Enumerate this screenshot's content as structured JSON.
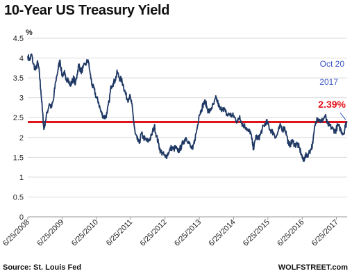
{
  "colors": {
    "series_line": "#1f3864",
    "reference_line": "#e0151b",
    "date_annotation": "#3a56c5",
    "value_annotation": "#e0151b",
    "grid": "#d9d9d9"
  },
  "chart_data": {
    "type": "line",
    "title": "10-Year US Treasury Yield",
    "ylabel": "%",
    "ylim": [
      0,
      4.5
    ],
    "yticks": [
      "0",
      "0.5",
      "1",
      "1.5",
      "2",
      "2.5",
      "3",
      "3.5",
      "4",
      "4.5"
    ],
    "xlim": [
      2008.49,
      2017.8
    ],
    "xticks": [
      {
        "label": "6/25/2008",
        "t": 2008.49
      },
      {
        "label": "6/25/2009",
        "t": 2009.49
      },
      {
        "label": "6/25/2010",
        "t": 2010.49
      },
      {
        "label": "6/25/2011",
        "t": 2011.49
      },
      {
        "label": "6/25/2012",
        "t": 2012.49
      },
      {
        "label": "6/25/2013",
        "t": 2013.49
      },
      {
        "label": "6/25/2014",
        "t": 2014.49
      },
      {
        "label": "6/25/2015",
        "t": 2015.49
      },
      {
        "label": "6/25/2016",
        "t": 2016.49
      },
      {
        "label": "6/25/2017",
        "t": 2017.49
      }
    ],
    "grid": "horizontal",
    "series": [
      {
        "values": [
          [
            2008.49,
            4.05
          ],
          [
            2008.55,
            3.95
          ],
          [
            2008.6,
            4.1
          ],
          [
            2008.65,
            3.85
          ],
          [
            2008.72,
            3.7
          ],
          [
            2008.78,
            3.9
          ],
          [
            2008.83,
            3.6
          ],
          [
            2008.87,
            3.2
          ],
          [
            2008.92,
            2.65
          ],
          [
            2008.96,
            2.2
          ],
          [
            2009.0,
            2.4
          ],
          [
            2009.06,
            2.65
          ],
          [
            2009.12,
            2.85
          ],
          [
            2009.18,
            2.75
          ],
          [
            2009.24,
            2.95
          ],
          [
            2009.3,
            3.4
          ],
          [
            2009.38,
            3.75
          ],
          [
            2009.43,
            3.95
          ],
          [
            2009.49,
            3.55
          ],
          [
            2009.55,
            3.65
          ],
          [
            2009.6,
            3.45
          ],
          [
            2009.66,
            3.5
          ],
          [
            2009.72,
            3.3
          ],
          [
            2009.78,
            3.4
          ],
          [
            2009.83,
            3.5
          ],
          [
            2009.88,
            3.35
          ],
          [
            2009.93,
            3.6
          ],
          [
            2009.98,
            3.85
          ],
          [
            2010.04,
            3.65
          ],
          [
            2010.1,
            3.75
          ],
          [
            2010.18,
            3.85
          ],
          [
            2010.25,
            3.95
          ],
          [
            2010.31,
            3.6
          ],
          [
            2010.37,
            3.3
          ],
          [
            2010.43,
            3.2
          ],
          [
            2010.49,
            3.0
          ],
          [
            2010.55,
            2.9
          ],
          [
            2010.62,
            2.65
          ],
          [
            2010.68,
            2.55
          ],
          [
            2010.74,
            2.5
          ],
          [
            2010.8,
            2.6
          ],
          [
            2010.86,
            2.9
          ],
          [
            2010.92,
            3.3
          ],
          [
            2010.97,
            3.35
          ],
          [
            2011.04,
            3.45
          ],
          [
            2011.1,
            3.65
          ],
          [
            2011.16,
            3.5
          ],
          [
            2011.22,
            3.45
          ],
          [
            2011.28,
            3.3
          ],
          [
            2011.34,
            3.1
          ],
          [
            2011.4,
            2.95
          ],
          [
            2011.46,
            3.05
          ],
          [
            2011.52,
            2.85
          ],
          [
            2011.58,
            2.4
          ],
          [
            2011.62,
            2.1
          ],
          [
            2011.68,
            1.95
          ],
          [
            2011.74,
            1.85
          ],
          [
            2011.8,
            2.1
          ],
          [
            2011.86,
            2.0
          ],
          [
            2011.92,
            1.95
          ],
          [
            2011.98,
            1.9
          ],
          [
            2012.04,
            1.95
          ],
          [
            2012.1,
            2.05
          ],
          [
            2012.18,
            2.3
          ],
          [
            2012.24,
            2.05
          ],
          [
            2012.3,
            1.85
          ],
          [
            2012.36,
            1.65
          ],
          [
            2012.42,
            1.6
          ],
          [
            2012.5,
            1.5
          ],
          [
            2012.55,
            1.55
          ],
          [
            2012.61,
            1.65
          ],
          [
            2012.68,
            1.75
          ],
          [
            2012.74,
            1.7
          ],
          [
            2012.8,
            1.75
          ],
          [
            2012.86,
            1.65
          ],
          [
            2012.92,
            1.7
          ],
          [
            2012.98,
            1.8
          ],
          [
            2013.04,
            1.9
          ],
          [
            2013.1,
            2.0
          ],
          [
            2013.18,
            1.9
          ],
          [
            2013.24,
            1.75
          ],
          [
            2013.3,
            1.7
          ],
          [
            2013.36,
            1.95
          ],
          [
            2013.42,
            2.2
          ],
          [
            2013.48,
            2.55
          ],
          [
            2013.55,
            2.7
          ],
          [
            2013.61,
            2.85
          ],
          [
            2013.67,
            2.9
          ],
          [
            2013.73,
            2.7
          ],
          [
            2013.79,
            2.65
          ],
          [
            2013.85,
            2.75
          ],
          [
            2013.92,
            2.85
          ],
          [
            2013.98,
            3.0
          ],
          [
            2014.04,
            2.85
          ],
          [
            2014.1,
            2.7
          ],
          [
            2014.18,
            2.75
          ],
          [
            2014.25,
            2.65
          ],
          [
            2014.31,
            2.55
          ],
          [
            2014.37,
            2.6
          ],
          [
            2014.43,
            2.55
          ],
          [
            2014.49,
            2.55
          ],
          [
            2014.55,
            2.45
          ],
          [
            2014.61,
            2.4
          ],
          [
            2014.67,
            2.55
          ],
          [
            2014.73,
            2.35
          ],
          [
            2014.8,
            2.3
          ],
          [
            2014.86,
            2.25
          ],
          [
            2014.92,
            2.15
          ],
          [
            2014.98,
            2.15
          ],
          [
            2015.04,
            1.85
          ],
          [
            2015.08,
            1.7
          ],
          [
            2015.14,
            2.05
          ],
          [
            2015.2,
            1.95
          ],
          [
            2015.26,
            2.05
          ],
          [
            2015.32,
            2.2
          ],
          [
            2015.38,
            2.3
          ],
          [
            2015.44,
            2.4
          ],
          [
            2015.49,
            2.35
          ],
          [
            2015.55,
            2.2
          ],
          [
            2015.61,
            2.15
          ],
          [
            2015.67,
            2.1
          ],
          [
            2015.73,
            2.0
          ],
          [
            2015.79,
            2.15
          ],
          [
            2015.86,
            2.3
          ],
          [
            2015.92,
            2.2
          ],
          [
            2015.98,
            2.25
          ],
          [
            2016.04,
            2.05
          ],
          [
            2016.1,
            1.8
          ],
          [
            2016.16,
            1.85
          ],
          [
            2016.22,
            1.9
          ],
          [
            2016.28,
            1.8
          ],
          [
            2016.34,
            1.85
          ],
          [
            2016.4,
            1.75
          ],
          [
            2016.46,
            1.6
          ],
          [
            2016.52,
            1.4
          ],
          [
            2016.56,
            1.5
          ],
          [
            2016.62,
            1.55
          ],
          [
            2016.68,
            1.6
          ],
          [
            2016.74,
            1.7
          ],
          [
            2016.8,
            1.85
          ],
          [
            2016.86,
            2.3
          ],
          [
            2016.92,
            2.5
          ],
          [
            2016.98,
            2.45
          ],
          [
            2017.04,
            2.4
          ],
          [
            2017.1,
            2.45
          ],
          [
            2017.16,
            2.55
          ],
          [
            2017.22,
            2.35
          ],
          [
            2017.28,
            2.3
          ],
          [
            2017.34,
            2.25
          ],
          [
            2017.4,
            2.2
          ],
          [
            2017.46,
            2.15
          ],
          [
            2017.52,
            2.3
          ],
          [
            2017.58,
            2.25
          ],
          [
            2017.64,
            2.15
          ],
          [
            2017.7,
            2.1
          ],
          [
            2017.75,
            2.3
          ],
          [
            2017.8,
            2.39
          ]
        ]
      }
    ],
    "reference_line": {
      "y": 2.39
    },
    "annotations": [
      {
        "text": "Oct 20",
        "t": 2017.8,
        "y": 2.39
      },
      {
        "text": "2017",
        "t": 2017.8,
        "y": 2.39
      },
      {
        "text": "2.39%",
        "t": 2017.8,
        "y": 2.39
      }
    ]
  },
  "footer": {
    "source": "Source: St. Louis Fed",
    "publisher": "WOLFSTREET.com"
  }
}
